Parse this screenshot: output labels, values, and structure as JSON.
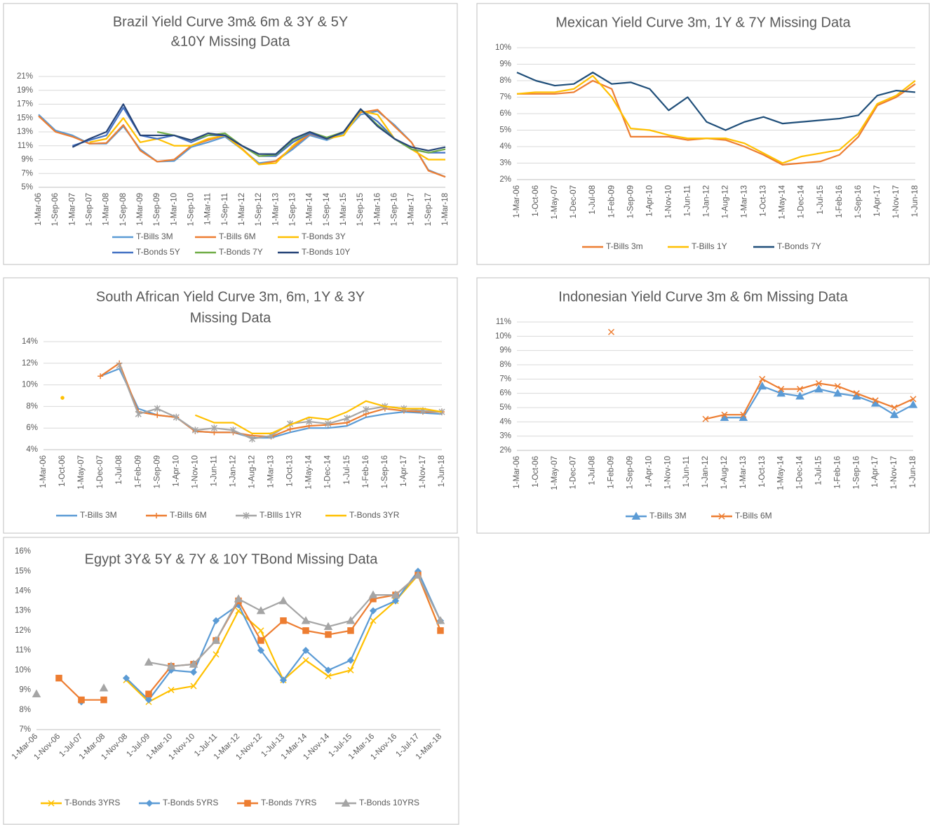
{
  "chart_data": [
    {
      "type": "line",
      "title": [
        "Brazil Yield Curve 3m& 6m & 3Y & 5Y",
        "&10Y Missing Data"
      ],
      "categories": [
        "1-Mar-06",
        "1-Sep-06",
        "1-Mar-07",
        "1-Sep-07",
        "1-Mar-08",
        "1-Sep-08",
        "1-Mar-09",
        "1-Sep-09",
        "1-Mar-10",
        "1-Sep-10",
        "1-Mar-11",
        "1-Sep-11",
        "1-Mar-12",
        "1-Sep-12",
        "1-Mar-13",
        "1-Sep-13",
        "1-Mar-14",
        "1-Sep-14",
        "1-Mar-15",
        "1-Sep-15",
        "1-Mar-16",
        "1-Sep-16",
        "1-Mar-17",
        "1-Sep-17",
        "1-Mar-18"
      ],
      "ylim": [
        5,
        21
      ],
      "yticks": [
        {
          "value": 5,
          "label": "5%"
        },
        {
          "value": 7,
          "label": "7%"
        },
        {
          "value": 9,
          "label": "9%"
        },
        {
          "value": 11,
          "label": "11%"
        },
        {
          "value": 13,
          "label": "13%"
        },
        {
          "value": 15,
          "label": "15%"
        },
        {
          "value": 17,
          "label": "17%"
        },
        {
          "value": 19,
          "label": "19%"
        },
        {
          "value": 21,
          "label": "21%"
        }
      ],
      "grid": true,
      "series": [
        {
          "name": "T-Bills 3M",
          "color": "#5b9bd5",
          "values": [
            15.5,
            13.2,
            12.5,
            11.3,
            11.3,
            13.8,
            10.5,
            8.7,
            8.8,
            10.8,
            11.5,
            12.3,
            10.5,
            8.5,
            8.8,
            10.5,
            12.5,
            11.8,
            12.8,
            15.5,
            16,
            14,
            11.5,
            7.5,
            6.5
          ]
        },
        {
          "name": "T-Bills 6M",
          "color": "#ed7d31",
          "values": [
            15.3,
            13,
            12.3,
            11.3,
            11.4,
            14,
            10.3,
            8.7,
            9,
            11,
            11.8,
            12.5,
            10.6,
            8.3,
            8.8,
            10.8,
            12.7,
            12,
            13,
            15.8,
            16.2,
            13.8,
            11.5,
            7.4,
            6.5
          ]
        },
        {
          "name": "T-Bonds 3Y",
          "color": "#ffc000",
          "values": [
            null,
            null,
            null,
            11.5,
            12,
            15,
            11.5,
            12,
            11,
            11,
            12,
            12.5,
            10.5,
            8.3,
            8.5,
            11,
            13,
            12,
            12.5,
            16,
            15.5,
            12,
            10.5,
            9,
            9
          ]
        },
        {
          "name": "T-Bonds 5Y",
          "color": "#4472c4",
          "values": [
            null,
            null,
            11,
            11.8,
            12.5,
            16.5,
            12.5,
            12,
            12.5,
            11.5,
            12.5,
            12.5,
            11,
            9.5,
            9.5,
            11.5,
            12.8,
            12,
            13,
            16.2,
            14.5,
            12,
            10.5,
            10,
            10
          ]
        },
        {
          "name": "T-Bonds 7Y",
          "color": "#70ad47",
          "values": [
            null,
            null,
            null,
            null,
            null,
            null,
            null,
            13,
            12.5,
            11.8,
            12.5,
            12.8,
            11,
            9.5,
            9.7,
            11.8,
            13,
            12.2,
            13,
            16.3,
            14,
            12,
            10.5,
            10,
            10.5
          ]
        },
        {
          "name": "T-Bonds 10Y",
          "color": "#264478",
          "values": [
            null,
            null,
            10.8,
            12,
            13,
            17,
            12.5,
            12.5,
            12.5,
            11.8,
            12.8,
            12.5,
            11,
            9.8,
            9.8,
            12,
            13,
            12,
            13,
            16.3,
            13.8,
            12,
            10.8,
            10.3,
            10.8
          ]
        }
      ]
    },
    {
      "type": "line",
      "title": [
        "Mexican Yield Curve 3m, 1Y & 7Y Missing Data"
      ],
      "categories": [
        "1-Mar-06",
        "1-Oct-06",
        "1-May-07",
        "1-Dec-07",
        "1-Jul-08",
        "1-Feb-09",
        "1-Sep-09",
        "1-Apr-10",
        "1-Nov-10",
        "1-Jun-11",
        "1-Jan-12",
        "1-Aug-12",
        "1-Mar-13",
        "1-Oct-13",
        "1-May-14",
        "1-Dec-14",
        "1-Jul-15",
        "1-Feb-16",
        "1-Sep-16",
        "1-Apr-17",
        "1-Nov-17",
        "1-Jun-18"
      ],
      "ylim": [
        2,
        10
      ],
      "yticks": [
        {
          "value": 2,
          "label": "2%"
        },
        {
          "value": 3,
          "label": "3%"
        },
        {
          "value": 4,
          "label": "4%"
        },
        {
          "value": 5,
          "label": "5%"
        },
        {
          "value": 6,
          "label": "6%"
        },
        {
          "value": 7,
          "label": "7%"
        },
        {
          "value": 8,
          "label": "8%"
        },
        {
          "value": 9,
          "label": "9%"
        },
        {
          "value": 10,
          "label": "10%"
        }
      ],
      "grid": true,
      "series": [
        {
          "name": "T-Bills 3m",
          "color": "#ed7d31",
          "values": [
            7.2,
            7.2,
            7.2,
            7.3,
            8,
            7.5,
            4.6,
            4.6,
            4.6,
            4.4,
            4.5,
            4.4,
            4,
            3.5,
            2.9,
            3,
            3.1,
            3.5,
            4.6,
            6.5,
            7,
            7.8
          ]
        },
        {
          "name": "T-Bills 1Y",
          "color": "#ffc000",
          "values": [
            7.2,
            7.3,
            7.3,
            7.5,
            8.3,
            7,
            5.1,
            5,
            4.7,
            4.5,
            4.5,
            4.5,
            4.2,
            3.6,
            3,
            3.4,
            3.6,
            3.8,
            4.8,
            6.6,
            7.1,
            8
          ]
        },
        {
          "name": "T-Bonds 7Y",
          "color": "#1f4e79",
          "values": [
            8.5,
            8,
            7.7,
            7.8,
            8.5,
            7.8,
            7.9,
            7.5,
            6.2,
            7,
            5.5,
            5,
            5.5,
            5.8,
            5.4,
            5.5,
            5.6,
            5.7,
            5.9,
            7.1,
            7.4,
            7.3
          ]
        }
      ]
    },
    {
      "type": "line",
      "title": [
        "South African Yield Curve 3m, 6m, 1Y & 3Y",
        "Missing Data"
      ],
      "categories": [
        "1-Mar-06",
        "1-Oct-06",
        "1-May-07",
        "1-Dec-07",
        "1-Jul-08",
        "1-Feb-09",
        "1-Sep-09",
        "1-Apr-10",
        "1-Nov-10",
        "1-Jun-11",
        "1-Jan-12",
        "1-Aug-12",
        "1-Mar-13",
        "1-Oct-13",
        "1-May-14",
        "1-Dec-14",
        "1-Jul-15",
        "1-Feb-16",
        "1-Sep-16",
        "1-Apr-17",
        "1-Nov-17",
        "1-Jun-18"
      ],
      "ylim": [
        4,
        14
      ],
      "yticks": [
        {
          "value": 4,
          "label": "4%"
        },
        {
          "value": 6,
          "label": "6%"
        },
        {
          "value": 8,
          "label": "8%"
        },
        {
          "value": 10,
          "label": "10%"
        },
        {
          "value": 12,
          "label": "12%"
        },
        {
          "value": 14,
          "label": "14%"
        }
      ],
      "grid": true,
      "series": [
        {
          "name": "T-Bills 3M",
          "color": "#5b9bd5",
          "values": [
            null,
            null,
            null,
            10.8,
            11.5,
            7.8,
            7.2,
            7,
            5.7,
            5.6,
            5.6,
            5.1,
            5.1,
            5.6,
            6,
            6,
            6.2,
            7,
            7.3,
            7.5,
            7.4,
            7.3
          ]
        },
        {
          "name": "T-Bills 6M",
          "color": "#ed7d31",
          "marker": "plus",
          "values": [
            null,
            null,
            null,
            10.8,
            12,
            7.5,
            7.2,
            7,
            5.7,
            5.6,
            5.6,
            5.3,
            5.2,
            5.9,
            6.2,
            6.3,
            6.5,
            7.3,
            7.8,
            7.6,
            7.5,
            7.5
          ]
        },
        {
          "name": "T-BIlls 1YR",
          "color": "#a5a5a5",
          "marker": "star",
          "values": [
            null,
            null,
            null,
            null,
            11.8,
            7.3,
            7.8,
            7,
            5.8,
            6,
            5.8,
            5,
            5.3,
            6.4,
            6.6,
            6.4,
            6.9,
            7.7,
            8,
            7.8,
            7.6,
            7.5
          ]
        },
        {
          "name": "T-Bonds 3YR",
          "color": "#ffc000",
          "values": [
            null,
            8.8,
            null,
            null,
            null,
            null,
            null,
            null,
            7.2,
            6.5,
            6.5,
            5.5,
            5.5,
            6.3,
            7,
            6.8,
            7.5,
            8.5,
            8,
            7.8,
            7.8,
            7.5
          ]
        }
      ]
    },
    {
      "type": "line",
      "title": [
        "Indonesian Yield Curve 3m & 6m Missing Data"
      ],
      "categories": [
        "1-Mar-06",
        "1-Oct-06",
        "1-May-07",
        "1-Dec-07",
        "1-Jul-08",
        "1-Feb-09",
        "1-Sep-09",
        "1-Apr-10",
        "1-Nov-10",
        "1-Jun-11",
        "1-Jan-12",
        "1-Aug-12",
        "1-Mar-13",
        "1-Oct-13",
        "1-May-14",
        "1-Dec-14",
        "1-Jul-15",
        "1-Feb-16",
        "1-Sep-16",
        "1-Apr-17",
        "1-Nov-17",
        "1-Jun-18"
      ],
      "ylim": [
        2,
        11
      ],
      "yticks": [
        {
          "value": 2,
          "label": "2%"
        },
        {
          "value": 3,
          "label": "3%"
        },
        {
          "value": 4,
          "label": "4%"
        },
        {
          "value": 5,
          "label": "5%"
        },
        {
          "value": 6,
          "label": "6%"
        },
        {
          "value": 7,
          "label": "7%"
        },
        {
          "value": 8,
          "label": "8%"
        },
        {
          "value": 9,
          "label": "9%"
        },
        {
          "value": 10,
          "label": "10%"
        },
        {
          "value": 11,
          "label": "11%"
        }
      ],
      "grid": true,
      "series": [
        {
          "name": "T-Bills 3M",
          "color": "#5b9bd5",
          "marker": "triangle",
          "values": [
            null,
            null,
            null,
            null,
            null,
            null,
            null,
            null,
            null,
            null,
            null,
            4.3,
            4.3,
            6.5,
            6,
            5.8,
            6.3,
            6,
            5.8,
            5.3,
            4.5,
            5.2
          ]
        },
        {
          "name": "T-Bills 6M",
          "color": "#ed7d31",
          "marker": "x",
          "values": [
            null,
            null,
            null,
            null,
            null,
            10.3,
            null,
            null,
            null,
            null,
            4.2,
            4.5,
            4.5,
            7,
            6.3,
            6.3,
            6.7,
            6.5,
            6,
            5.5,
            5,
            5.6
          ]
        }
      ]
    },
    {
      "type": "line",
      "title": [
        "Egypt 3Y& 5Y & 7Y & 10Y TBond Missing Data"
      ],
      "categories": [
        "1-Mar-06",
        "1-Nov-06",
        "1-Jul-07",
        "1-Mar-08",
        "1-Nov-08",
        "1-Jul-09",
        "1-Mar-10",
        "1-Nov-10",
        "1-Jul-11",
        "1-Mar-12",
        "1-Nov-12",
        "1-Jul-13",
        "1-Mar-14",
        "1-Nov-14",
        "1-Jul-15",
        "1-Mar-16",
        "1-Nov-16",
        "1-Jul-17",
        "1-Mar-18"
      ],
      "ylim": [
        7,
        16
      ],
      "yticks": [
        {
          "value": 7,
          "label": "7%"
        },
        {
          "value": 8,
          "label": "8%"
        },
        {
          "value": 9,
          "label": "9%"
        },
        {
          "value": 10,
          "label": "10%"
        },
        {
          "value": 11,
          "label": "11%"
        },
        {
          "value": 12,
          "label": "12%"
        },
        {
          "value": 13,
          "label": "13%"
        },
        {
          "value": 14,
          "label": "14%"
        },
        {
          "value": 15,
          "label": "15%"
        },
        {
          "value": 16,
          "label": "16%"
        }
      ],
      "grid": false,
      "series": [
        {
          "name": "T-Bonds 3YRS",
          "color": "#ffc000",
          "marker": "x",
          "values": [
            null,
            null,
            null,
            null,
            9.5,
            8.4,
            9,
            9.2,
            10.8,
            13,
            12,
            9.5,
            10.5,
            9.7,
            10,
            12.5,
            13.5,
            14.8,
            12
          ]
        },
        {
          "name": "T-Bonds 5YRS",
          "color": "#5b9bd5",
          "marker": "diamond",
          "values": [
            null,
            null,
            8.4,
            null,
            9.6,
            8.5,
            10,
            9.9,
            12.5,
            13.3,
            11,
            9.5,
            11,
            10,
            10.5,
            13,
            13.5,
            15,
            12.5
          ]
        },
        {
          "name": "T-Bonds 7YRS",
          "color": "#ed7d31",
          "marker": "square",
          "values": [
            null,
            9.6,
            8.5,
            8.5,
            null,
            8.8,
            10.2,
            10.3,
            11.5,
            13.5,
            11.5,
            12.5,
            12,
            11.8,
            12,
            13.6,
            13.8,
            14.8,
            12
          ]
        },
        {
          "name": "T-Bonds 10YRS",
          "color": "#a5a5a5",
          "marker": "triangle",
          "values": [
            8.8,
            null,
            null,
            9.1,
            null,
            10.4,
            10.2,
            10.3,
            11.5,
            13.6,
            13,
            13.5,
            12.5,
            12.2,
            12.5,
            13.8,
            13.8,
            14.8,
            12.5
          ]
        }
      ]
    }
  ]
}
